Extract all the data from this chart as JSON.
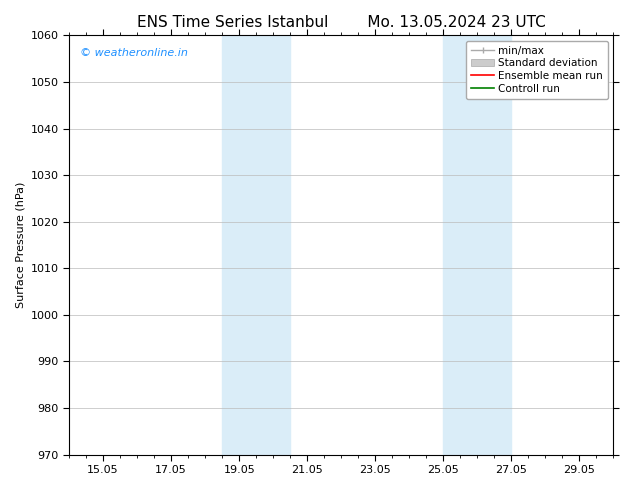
{
  "title_left": "ENS Time Series Istanbul",
  "title_right": "Mo. 13.05.2024 23 UTC",
  "ylabel": "Surface Pressure (hPa)",
  "ylim": [
    970,
    1060
  ],
  "yticks": [
    970,
    980,
    990,
    1000,
    1010,
    1020,
    1030,
    1040,
    1050,
    1060
  ],
  "xlim": [
    0,
    16
  ],
  "xtick_labels": [
    "15.05",
    "17.05",
    "19.05",
    "21.05",
    "23.05",
    "25.05",
    "27.05",
    "29.05"
  ],
  "xtick_positions": [
    1,
    3,
    5,
    7,
    9,
    11,
    13,
    15
  ],
  "shaded_bands": [
    {
      "x_start": 4.5,
      "x_end": 6.5,
      "color": "#daedf8"
    },
    {
      "x_start": 11.0,
      "x_end": 13.0,
      "color": "#daedf8"
    }
  ],
  "watermark_text": "© weatheronline.in",
  "watermark_color": "#1E90FF",
  "background_color": "#ffffff",
  "grid_color": "#bbbbbb",
  "title_fontsize": 11,
  "axis_fontsize": 8,
  "tick_fontsize": 8,
  "watermark_fontsize": 8,
  "legend_fontsize": 7.5
}
